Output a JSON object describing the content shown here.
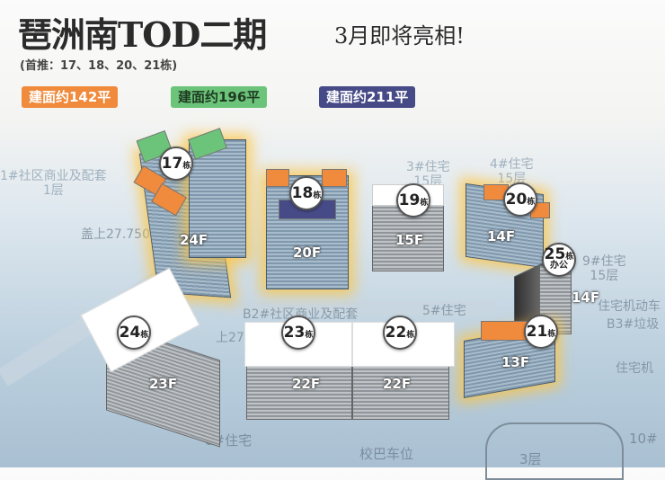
{
  "header": {
    "title": "琶洲南TOD二期",
    "subtitle": "3月即将亮相!",
    "note": "(首推：17、18、20、21栋)"
  },
  "legend": [
    {
      "label": "建面约142平",
      "color": "#f08a3c"
    },
    {
      "label": "建面约196平",
      "color": "#6cc47a"
    },
    {
      "label": "建面约211平",
      "color": "#464a86"
    }
  ],
  "colors": {
    "highlight_glow": "#ffc43c",
    "building_blue": "#7f98ad",
    "building_gray": "#8f959a"
  },
  "map_labels": {
    "l1": "1#社区商业及配套",
    "l1b": "1层",
    "l3": "3#住宅",
    "l3b": "15层",
    "l4": "4#住宅",
    "l4b": "15层",
    "l_level1": "盖上27.750",
    "l_level2": "上27.750",
    "l_b2": "B2#社区商业及配套",
    "l5": "5#住宅",
    "l9": "9#住宅",
    "l9b": "15层",
    "l_car1": "住宅机动车",
    "l_b3": "B3#垃圾",
    "l_car2": "住宅机",
    "l8": "8#住宅",
    "l_bus": "校巴车位",
    "l10": "10#",
    "l_3f": "3层"
  },
  "buildings": [
    {
      "number": "17",
      "unit": "栋",
      "floors": "24F",
      "featured": true
    },
    {
      "number": "18",
      "unit": "栋",
      "floors": "20F",
      "featured": true
    },
    {
      "number": "19",
      "unit": "栋",
      "floors": "15F",
      "featured": false
    },
    {
      "number": "20",
      "unit": "栋",
      "floors": "14F",
      "featured": true
    },
    {
      "number": "25",
      "unit": "栋",
      "floors": "14F",
      "featured": false,
      "use": "办公"
    },
    {
      "number": "21",
      "unit": "栋",
      "floors": "13F",
      "featured": true
    },
    {
      "number": "24",
      "unit": "栋",
      "floors": "23F",
      "featured": false
    },
    {
      "number": "23",
      "unit": "栋",
      "floors": "22F",
      "featured": false
    },
    {
      "number": "22",
      "unit": "栋",
      "floors": "22F",
      "featured": false
    }
  ]
}
